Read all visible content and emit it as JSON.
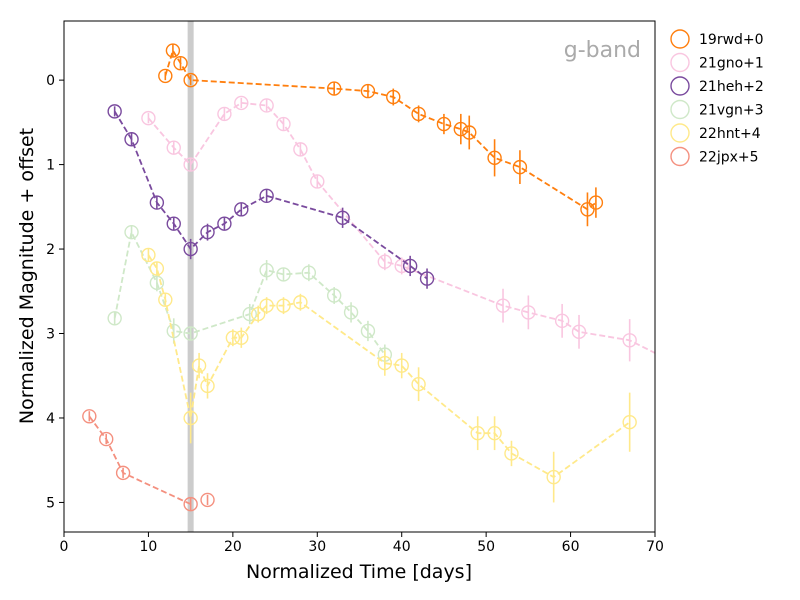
{
  "chart_data": {
    "type": "scatter",
    "title": "",
    "annotation": "g-band",
    "xlabel": "Normalized Time [days]",
    "ylabel": "Normalized Magnitude + offset",
    "xlim": [
      0,
      70
    ],
    "ylim": [
      5.35,
      -0.7
    ],
    "y_inverted": true,
    "xticks": [
      0,
      10,
      20,
      30,
      40,
      50,
      60,
      70
    ],
    "yticks": [
      0,
      1,
      2,
      3,
      4,
      5
    ],
    "grid": false,
    "legend_placement": "outside-top-right",
    "vertical_band_x": 15,
    "vertical_band_color": "#cccccc",
    "series": [
      {
        "name": "19rwd+0",
        "color": "#ff7f0e",
        "x": [
          12.0,
          12.9,
          13.8,
          15.0,
          32.0,
          36.0,
          39.0,
          42.0,
          45.0,
          47.0,
          48.0,
          51.0,
          54.0,
          62.0,
          63.0
        ],
        "y": [
          -0.05,
          -0.35,
          -0.2,
          0.0,
          0.1,
          0.13,
          0.2,
          0.4,
          0.52,
          0.58,
          0.62,
          0.92,
          1.03,
          1.53,
          1.45
        ],
        "yerr": [
          0.05,
          0.08,
          0.07,
          0.06,
          0.08,
          0.08,
          0.1,
          0.1,
          0.12,
          0.18,
          0.2,
          0.22,
          0.2,
          0.2,
          0.18
        ]
      },
      {
        "name": "21gno+1",
        "color": "#f9c6e0",
        "x": [
          10.0,
          13.0,
          15.0,
          19.0,
          21.0,
          24.0,
          26.0,
          28.0,
          30.0,
          38.0,
          40.0,
          52.0,
          55.0,
          59.0,
          61.0,
          67.0,
          71.0
        ],
        "y": [
          0.45,
          0.8,
          1.0,
          0.4,
          0.27,
          0.3,
          0.52,
          0.82,
          1.2,
          2.15,
          2.2,
          2.67,
          2.75,
          2.85,
          2.98,
          3.08,
          3.28
        ],
        "yerr": [
          0.06,
          0.08,
          0.08,
          0.08,
          0.06,
          0.07,
          0.08,
          0.08,
          0.08,
          0.1,
          0.1,
          0.2,
          0.2,
          0.2,
          0.2,
          0.25,
          0.25
        ]
      },
      {
        "name": "21heh+2",
        "color": "#7a4b9e",
        "x": [
          6.0,
          8.0,
          11.0,
          13.0,
          15.0,
          17.0,
          19.0,
          21.0,
          24.0,
          33.0,
          41.0,
          43.0
        ],
        "y": [
          0.37,
          0.7,
          1.45,
          1.7,
          2.0,
          1.8,
          1.7,
          1.53,
          1.37,
          1.63,
          2.2,
          2.35
        ],
        "yerr": [
          0.06,
          0.08,
          0.08,
          0.08,
          0.12,
          0.1,
          0.08,
          0.08,
          0.08,
          0.12,
          0.12,
          0.12
        ]
      },
      {
        "name": "21vgn+3",
        "color": "#cfe8c8",
        "x": [
          6.0,
          8.0,
          11.0,
          13.0,
          15.0,
          22.0,
          24.0,
          26.0,
          29.0,
          32.0,
          34.0,
          36.0,
          38.0
        ],
        "y": [
          2.82,
          1.8,
          2.4,
          2.97,
          3.0,
          2.77,
          2.25,
          2.3,
          2.28,
          2.55,
          2.75,
          2.97,
          3.25
        ],
        "yerr": [
          0.08,
          0.08,
          0.1,
          0.15,
          0.08,
          0.12,
          0.12,
          0.08,
          0.1,
          0.1,
          0.12,
          0.12,
          0.12
        ]
      },
      {
        "name": "22hnt+4",
        "color": "#ffe98a",
        "x": [
          10.0,
          11.0,
          12.0,
          15.0,
          16.0,
          17.0,
          20.0,
          21.0,
          23.0,
          24.0,
          26.0,
          28.0,
          38.0,
          40.0,
          42.0,
          49.0,
          51.0,
          53.0,
          58.0,
          67.0
        ],
        "y": [
          2.07,
          2.23,
          2.6,
          4.0,
          3.38,
          3.62,
          3.05,
          3.05,
          2.77,
          2.67,
          2.67,
          2.63,
          3.35,
          3.38,
          3.6,
          4.18,
          4.18,
          4.42,
          4.7,
          4.05
        ],
        "yerr": [
          0.08,
          0.08,
          0.08,
          0.3,
          0.15,
          0.15,
          0.1,
          0.12,
          0.1,
          0.1,
          0.1,
          0.1,
          0.15,
          0.15,
          0.2,
          0.2,
          0.2,
          0.15,
          0.3,
          0.35
        ]
      },
      {
        "name": "22jpx+5",
        "color": "#f4907f",
        "x": [
          3.0,
          5.0,
          7.0,
          15.0,
          17.0
        ],
        "y": [
          3.98,
          4.25,
          4.65,
          5.02,
          4.97
        ],
        "yerr": [
          0.06,
          0.06,
          0.06,
          0.08,
          0.06
        ]
      }
    ],
    "connected_counts": [
      15,
      17,
      12,
      13,
      20,
      4
    ]
  }
}
